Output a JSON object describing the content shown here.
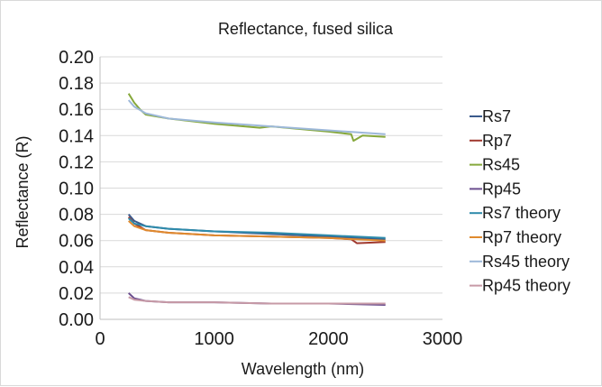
{
  "chart_data": {
    "type": "line",
    "title": "Reflectance, fused silica",
    "xlabel": "Wavelength (nm)",
    "ylabel": "Reflectance (R)",
    "xlim": [
      0,
      3000
    ],
    "ylim": [
      0,
      0.2
    ],
    "x_ticks": [
      "0",
      "1000",
      "2000",
      "3000"
    ],
    "y_ticks": [
      "0.00",
      "0.02",
      "0.04",
      "0.06",
      "0.08",
      "0.10",
      "0.12",
      "0.14",
      "0.16",
      "0.18",
      "0.20"
    ],
    "grid": "horizontal",
    "legend_position": "right",
    "series": [
      {
        "name": "Rs7",
        "color": "#3a5a8c",
        "x": [
          250,
          300,
          400,
          600,
          1000,
          1500,
          2000,
          2200,
          2500
        ],
        "y": [
          0.08,
          0.075,
          0.071,
          0.069,
          0.067,
          0.065,
          0.063,
          0.062,
          0.061
        ]
      },
      {
        "name": "Rp7",
        "color": "#a0392f",
        "x": [
          250,
          300,
          400,
          600,
          1000,
          1500,
          2000,
          2200,
          2250,
          2500
        ],
        "y": [
          0.078,
          0.073,
          0.068,
          0.066,
          0.064,
          0.063,
          0.062,
          0.061,
          0.058,
          0.059
        ]
      },
      {
        "name": "Rs45",
        "color": "#86a83b",
        "x": [
          250,
          300,
          350,
          400,
          600,
          1000,
          1400,
          1500,
          2000,
          2200,
          2220,
          2300,
          2500
        ],
        "y": [
          0.172,
          0.165,
          0.16,
          0.156,
          0.153,
          0.149,
          0.146,
          0.147,
          0.143,
          0.141,
          0.136,
          0.14,
          0.139
        ]
      },
      {
        "name": "Rp45",
        "color": "#6a4d8e",
        "x": [
          250,
          300,
          400,
          600,
          1000,
          1500,
          2000,
          2500
        ],
        "y": [
          0.02,
          0.016,
          0.014,
          0.013,
          0.013,
          0.012,
          0.012,
          0.011
        ]
      },
      {
        "name": "Rs7 theory",
        "color": "#2e8bab",
        "x": [
          250,
          300,
          400,
          600,
          1000,
          1500,
          2000,
          2500
        ],
        "y": [
          0.077,
          0.073,
          0.071,
          0.069,
          0.067,
          0.066,
          0.064,
          0.062
        ]
      },
      {
        "name": "Rp7 theory",
        "color": "#e08a2e",
        "x": [
          250,
          300,
          400,
          600,
          1000,
          1500,
          2000,
          2500
        ],
        "y": [
          0.075,
          0.071,
          0.068,
          0.066,
          0.064,
          0.063,
          0.062,
          0.06
        ]
      },
      {
        "name": "Rs45 theory",
        "color": "#9db8d9",
        "x": [
          250,
          300,
          400,
          600,
          1000,
          1500,
          2000,
          2500
        ],
        "y": [
          0.167,
          0.162,
          0.157,
          0.153,
          0.15,
          0.147,
          0.144,
          0.141
        ]
      },
      {
        "name": "Rp45 theory",
        "color": "#c79aa6",
        "x": [
          250,
          300,
          400,
          600,
          1000,
          1500,
          2000,
          2500
        ],
        "y": [
          0.017,
          0.015,
          0.014,
          0.013,
          0.013,
          0.012,
          0.012,
          0.012
        ]
      }
    ]
  }
}
